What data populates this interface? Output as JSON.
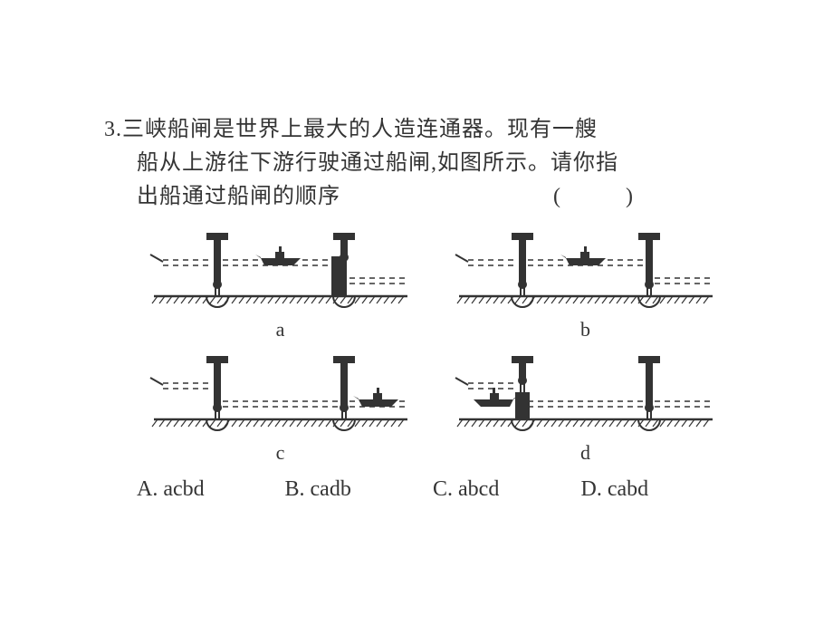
{
  "question": {
    "number": "3.",
    "line1": "三峡船闸是世界上最大的人造连通器。现有一艘",
    "line2": "船从上游往下游行驶通过船闸,如图所示。请你指",
    "line3": "出船通过船闸的顺序",
    "paren": "(　　)"
  },
  "diagrams": {
    "labels": {
      "a": "a",
      "b": "b",
      "c": "c",
      "d": "d"
    },
    "colors": {
      "stroke": "#333333",
      "fill_dark": "#333333",
      "bg": "#ffffff"
    }
  },
  "options": {
    "A": "A. acbd",
    "B": "B. cadb",
    "C": "C. abcd",
    "D": "D. cabd"
  }
}
